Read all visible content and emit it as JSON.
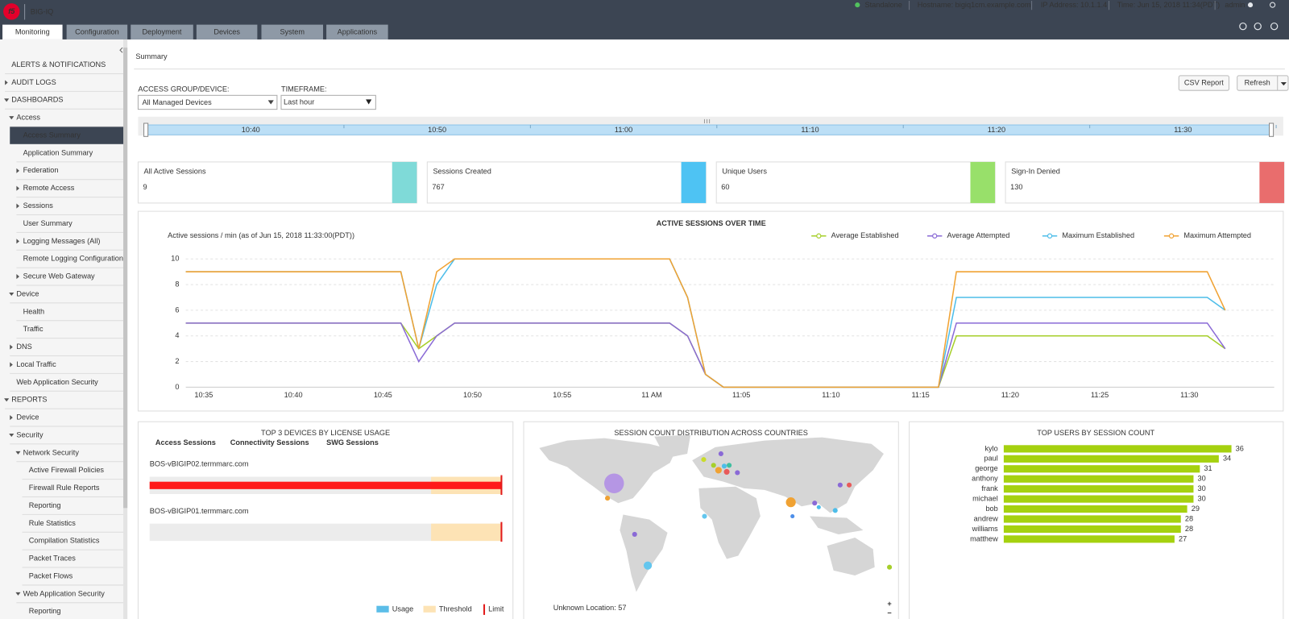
{
  "header": {
    "logo": "f5",
    "product": "BIG-IQ",
    "status": "Standalone",
    "hostname": "Hostname: bigiq1cm.example.com",
    "ip": "IP Address: 10.1.1.4",
    "time": "Time: Jun 15, 2018 11:34(PDT)",
    "user": "admin"
  },
  "tabs": [
    "Monitoring",
    "Configuration",
    "Deployment",
    "Devices",
    "System",
    "Applications"
  ],
  "nav": [
    "ALERTS & NOTIFICATIONS",
    "AUDIT LOGS",
    "DASHBOARDS",
    "Access",
    "Access Summary",
    "Application Summary",
    "Federation",
    "Remote Access",
    "Sessions",
    "User Summary",
    "Logging Messages (All)",
    "Remote Logging Configuration",
    "Secure Web Gateway",
    "Device",
    "Health",
    "Traffic",
    "DNS",
    "Local Traffic",
    "Web Application Security",
    "REPORTS",
    "Device",
    "Security",
    "Network Security",
    "Active Firewall Policies",
    "Firewall Rule Reports",
    "Reporting",
    "Rule Statistics",
    "Compilation Statistics",
    "Packet Traces",
    "Packet Flows",
    "Web Application Security",
    "Reporting"
  ],
  "page_title": "Summary",
  "filters": {
    "group_label": "ACCESS GROUP/DEVICE:",
    "group_value": "All Managed Devices",
    "timeframe_label": "TIMEFRAME:",
    "timeframe_value": "Last hour"
  },
  "buttons": [
    "CSV Report",
    "Refresh"
  ],
  "timeline": [
    "10:40",
    "10:50",
    "11:00",
    "11:10",
    "11:20",
    "11:30"
  ],
  "kpis": [
    {
      "label": "All Active Sessions",
      "value": 9,
      "color": "#7fdad8"
    },
    {
      "label": "Sessions Created",
      "value": 767,
      "color": "#4ec3f3"
    },
    {
      "label": "Unique Users",
      "value": 60,
      "color": "#98e06a"
    },
    {
      "label": "Sign-In Denied",
      "value": 130,
      "color": "#e96d6d"
    }
  ],
  "active_sessions": {
    "type": "line",
    "title": "ACTIVE SESSIONS OVER TIME",
    "subtitle": "Active sessions / min (as of Jun 15, 2018 11:33:00(PDT))",
    "categories": [
      null,
      "10:35",
      null,
      null,
      null,
      null,
      "10:40",
      null,
      null,
      null,
      null,
      "10:45",
      null,
      null,
      null,
      null,
      "10:50",
      null,
      null,
      null,
      null,
      "10:55",
      null,
      null,
      null,
      null,
      "11 AM",
      null,
      null,
      null,
      null,
      "11:05",
      null,
      null,
      null,
      null,
      "11:10",
      null,
      null,
      null,
      null,
      "11:15",
      null,
      null,
      null,
      null,
      "11:20",
      null,
      null,
      null,
      null,
      "11:25",
      null,
      null,
      null,
      null,
      "11:30",
      null,
      null
    ],
    "series": [
      {
        "name": "Average Established",
        "color": "#a6cf2a",
        "values": [
          5,
          5,
          5,
          5,
          5,
          5,
          5,
          5,
          5,
          5,
          5,
          5,
          5,
          3,
          4,
          5,
          5,
          5,
          5,
          5,
          5,
          5,
          5,
          5,
          5,
          5,
          5,
          5,
          4,
          1,
          0,
          0,
          0,
          0,
          0,
          0,
          0,
          0,
          0,
          0,
          0,
          0,
          0,
          4,
          4,
          4,
          4,
          4,
          4,
          4,
          4,
          4,
          4,
          4,
          4,
          4,
          4,
          4,
          3
        ]
      },
      {
        "name": "Average Attempted",
        "color": "#8a6ad6",
        "values": [
          5,
          5,
          5,
          5,
          5,
          5,
          5,
          5,
          5,
          5,
          5,
          5,
          5,
          2,
          4,
          5,
          5,
          5,
          5,
          5,
          5,
          5,
          5,
          5,
          5,
          5,
          5,
          5,
          4,
          1,
          0,
          0,
          0,
          0,
          0,
          0,
          0,
          0,
          0,
          0,
          0,
          0,
          0,
          5,
          5,
          5,
          5,
          5,
          5,
          5,
          5,
          5,
          5,
          5,
          5,
          5,
          5,
          5,
          3
        ]
      },
      {
        "name": "Maximum Established",
        "color": "#4dbde9",
        "values": [
          9,
          9,
          9,
          9,
          9,
          9,
          9,
          9,
          9,
          9,
          9,
          9,
          9,
          3,
          8,
          10,
          10,
          10,
          10,
          10,
          10,
          10,
          10,
          10,
          10,
          10,
          10,
          10,
          7,
          1,
          0,
          0,
          0,
          0,
          0,
          0,
          0,
          0,
          0,
          0,
          0,
          0,
          0,
          7,
          7,
          7,
          7,
          7,
          7,
          7,
          7,
          7,
          7,
          7,
          7,
          7,
          7,
          7,
          6
        ]
      },
      {
        "name": "Maximum Attempted",
        "color": "#f0a233",
        "values": [
          9,
          9,
          9,
          9,
          9,
          9,
          9,
          9,
          9,
          9,
          9,
          9,
          9,
          3,
          9,
          10,
          10,
          10,
          10,
          10,
          10,
          10,
          10,
          10,
          10,
          10,
          10,
          10,
          7,
          1,
          0,
          0,
          0,
          0,
          0,
          0,
          0,
          0,
          0,
          0,
          0,
          0,
          0,
          9,
          9,
          9,
          9,
          9,
          9,
          9,
          9,
          9,
          9,
          9,
          9,
          9,
          9,
          9,
          6
        ]
      }
    ],
    "ylim": [
      0,
      10
    ],
    "yticks": [
      0,
      2,
      4,
      6,
      8,
      10
    ],
    "grid": true
  },
  "license_usage": {
    "title": "TOP 3 DEVICES BY LICENSE USAGE",
    "tabs": [
      "Access Sessions",
      "Connectivity Sessions",
      "SWG Sessions"
    ],
    "devices": [
      {
        "name": "BOS-vBIGIP02.termmarc.com",
        "usage": 100
      },
      {
        "name": "BOS-vBIGIP01.termmarc.com",
        "usage": 0
      }
    ],
    "threshold": 80,
    "limit": 100,
    "legend": [
      "Usage",
      "Threshold",
      "Limit"
    ]
  },
  "map": {
    "title": "SESSION COUNT DISTRIBUTION ACROSS COUNTRIES",
    "unknown": "Unknown Location: 57",
    "zoom_in": "+",
    "zoom_out": "−"
  },
  "top_users": {
    "type": "bar",
    "title": "TOP USERS BY SESSION COUNT",
    "categories": [
      "kylo",
      "paul",
      "george",
      "anthony",
      "frank",
      "michael",
      "bob",
      "andrew",
      "williams",
      "matthew"
    ],
    "values": [
      36,
      34,
      31,
      30,
      30,
      30,
      29,
      28,
      28,
      27
    ],
    "color": "#a5d10f"
  }
}
